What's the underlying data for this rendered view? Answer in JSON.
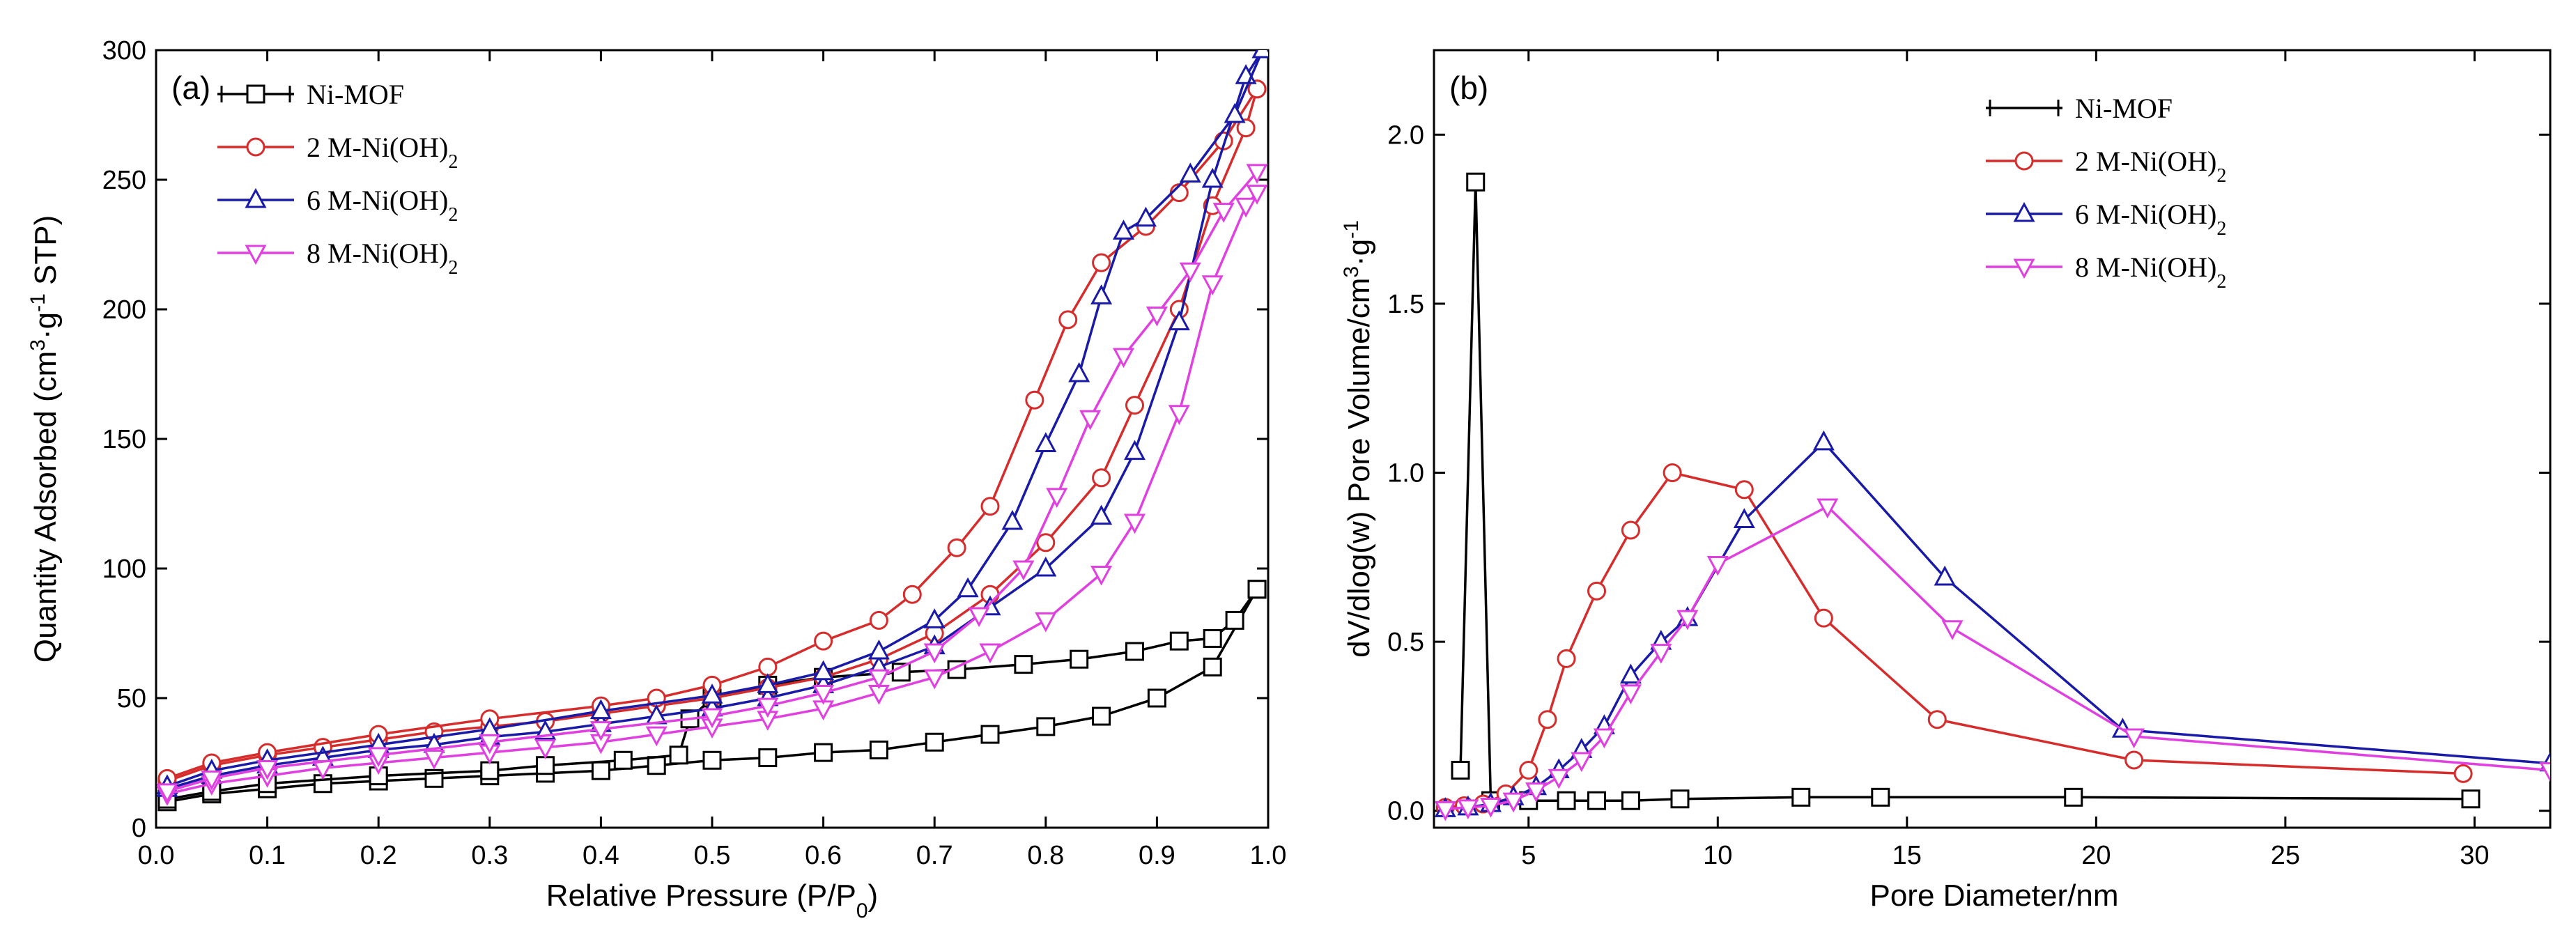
{
  "figure_name": "BET isotherms and pore size distribution of Ni-MOF and M-Ni(OH)2 samples",
  "colors": {
    "ni_mof": "#000000",
    "m2": "#d62c2c",
    "m6": "#1a1aa8",
    "m8": "#e040e0",
    "axis": "#000000"
  },
  "chart_data": [
    {
      "type": "line",
      "panel_label": "(a)",
      "xlabel_main": "Relative Pressure (P/P",
      "xlabel_sub": "0",
      "xlabel_close": ")",
      "ylabel_main": "Quantity Adsorbed (cm",
      "ylabel_sup1": "3",
      "ylabel_mid": "·g",
      "ylabel_sup2": "-1",
      "ylabel_end": " STP)",
      "xlim": [
        0.0,
        1.0
      ],
      "ylim": [
        0,
        300
      ],
      "xticks": [
        0.0,
        0.1,
        0.2,
        0.3,
        0.4,
        0.5,
        0.6,
        0.7,
        0.8,
        0.9,
        1.0
      ],
      "xtick_labels": [
        "0.0",
        "0.1",
        "0.2",
        "0.3",
        "0.4",
        "0.5",
        "0.6",
        "0.7",
        "0.8",
        "0.9",
        "1.0"
      ],
      "yticks": [
        0,
        50,
        100,
        150,
        200,
        250,
        300
      ],
      "ytick_labels": [
        "0",
        "50",
        "100",
        "150",
        "200",
        "250",
        "300"
      ],
      "legend_position": "top-left",
      "series": [
        {
          "key": "ni_mof",
          "name": "Ni-MOF",
          "name_sub": "",
          "marker": "square",
          "color": "#000000",
          "adsorption": [
            [
              0.01,
              10
            ],
            [
              0.05,
              13
            ],
            [
              0.1,
              15
            ],
            [
              0.15,
              17
            ],
            [
              0.2,
              18
            ],
            [
              0.25,
              19
            ],
            [
              0.3,
              20
            ],
            [
              0.35,
              21
            ],
            [
              0.4,
              22
            ],
            [
              0.45,
              24
            ],
            [
              0.5,
              26
            ],
            [
              0.55,
              27
            ],
            [
              0.6,
              29
            ],
            [
              0.65,
              30
            ],
            [
              0.7,
              33
            ],
            [
              0.75,
              36
            ],
            [
              0.8,
              39
            ],
            [
              0.85,
              43
            ],
            [
              0.9,
              50
            ],
            [
              0.95,
              62
            ],
            [
              0.99,
              92
            ]
          ],
          "desorption": [
            [
              0.99,
              92
            ],
            [
              0.97,
              80
            ],
            [
              0.95,
              73
            ],
            [
              0.92,
              72
            ],
            [
              0.88,
              68
            ],
            [
              0.83,
              65
            ],
            [
              0.78,
              63
            ],
            [
              0.72,
              61
            ],
            [
              0.67,
              60
            ],
            [
              0.6,
              58
            ],
            [
              0.55,
              55
            ],
            [
              0.5,
              50
            ],
            [
              0.48,
              42
            ],
            [
              0.47,
              28
            ],
            [
              0.42,
              26
            ],
            [
              0.35,
              24
            ],
            [
              0.3,
              22
            ],
            [
              0.2,
              20
            ],
            [
              0.1,
              17
            ],
            [
              0.05,
              14
            ],
            [
              0.01,
              11
            ]
          ]
        },
        {
          "key": "m2",
          "name": "2 M-Ni(OH)",
          "name_sub": "2",
          "marker": "circle",
          "color": "#d62c2c",
          "adsorption": [
            [
              0.01,
              18
            ],
            [
              0.05,
              24
            ],
            [
              0.1,
              28
            ],
            [
              0.15,
              31
            ],
            [
              0.2,
              34
            ],
            [
              0.25,
              37
            ],
            [
              0.3,
              39
            ],
            [
              0.35,
              41
            ],
            [
              0.4,
              44
            ],
            [
              0.45,
              47
            ],
            [
              0.5,
              50
            ],
            [
              0.55,
              54
            ],
            [
              0.6,
              58
            ],
            [
              0.65,
              65
            ],
            [
              0.7,
              75
            ],
            [
              0.75,
              90
            ],
            [
              0.8,
              110
            ],
            [
              0.85,
              135
            ],
            [
              0.88,
              163
            ],
            [
              0.92,
              200
            ],
            [
              0.95,
              240
            ],
            [
              0.98,
              270
            ],
            [
              0.99,
              285
            ]
          ],
          "desorption": [
            [
              0.99,
              285
            ],
            [
              0.96,
              265
            ],
            [
              0.92,
              245
            ],
            [
              0.89,
              232
            ],
            [
              0.85,
              218
            ],
            [
              0.82,
              196
            ],
            [
              0.79,
              165
            ],
            [
              0.75,
              124
            ],
            [
              0.72,
              108
            ],
            [
              0.68,
              90
            ],
            [
              0.65,
              80
            ],
            [
              0.6,
              72
            ],
            [
              0.55,
              62
            ],
            [
              0.5,
              55
            ],
            [
              0.45,
              50
            ],
            [
              0.4,
              47
            ],
            [
              0.3,
              42
            ],
            [
              0.2,
              36
            ],
            [
              0.1,
              29
            ],
            [
              0.05,
              25
            ],
            [
              0.01,
              19
            ]
          ]
        },
        {
          "key": "m6",
          "name": "6 M-Ni(OH)",
          "name_sub": "2",
          "marker": "triangle-up",
          "color": "#1a1aa8",
          "adsorption": [
            [
              0.01,
              15
            ],
            [
              0.05,
              20
            ],
            [
              0.1,
              24
            ],
            [
              0.15,
              27
            ],
            [
              0.2,
              30
            ],
            [
              0.25,
              32
            ],
            [
              0.3,
              35
            ],
            [
              0.35,
              37
            ],
            [
              0.4,
              40
            ],
            [
              0.45,
              43
            ],
            [
              0.5,
              46
            ],
            [
              0.55,
              50
            ],
            [
              0.6,
              55
            ],
            [
              0.65,
              62
            ],
            [
              0.7,
              70
            ],
            [
              0.75,
              85
            ],
            [
              0.8,
              100
            ],
            [
              0.85,
              120
            ],
            [
              0.88,
              145
            ],
            [
              0.92,
              195
            ],
            [
              0.95,
              250
            ],
            [
              0.98,
              290
            ],
            [
              0.995,
              300
            ]
          ],
          "desorption": [
            [
              0.995,
              300
            ],
            [
              0.97,
              275
            ],
            [
              0.93,
              252
            ],
            [
              0.89,
              235
            ],
            [
              0.87,
              230
            ],
            [
              0.85,
              205
            ],
            [
              0.83,
              175
            ],
            [
              0.8,
              148
            ],
            [
              0.77,
              118
            ],
            [
              0.73,
              92
            ],
            [
              0.7,
              80
            ],
            [
              0.65,
              68
            ],
            [
              0.6,
              60
            ],
            [
              0.55,
              55
            ],
            [
              0.5,
              51
            ],
            [
              0.4,
              45
            ],
            [
              0.3,
              38
            ],
            [
              0.2,
              32
            ],
            [
              0.1,
              26
            ],
            [
              0.05,
              22
            ],
            [
              0.01,
              16
            ]
          ]
        },
        {
          "key": "m8",
          "name": "8 M-Ni(OH)",
          "name_sub": "2",
          "marker": "triangle-down",
          "color": "#e040e0",
          "adsorption": [
            [
              0.01,
              13
            ],
            [
              0.05,
              17
            ],
            [
              0.1,
              20
            ],
            [
              0.15,
              23
            ],
            [
              0.2,
              25
            ],
            [
              0.25,
              27
            ],
            [
              0.3,
              29
            ],
            [
              0.35,
              31
            ],
            [
              0.4,
              33
            ],
            [
              0.45,
              36
            ],
            [
              0.5,
              39
            ],
            [
              0.55,
              42
            ],
            [
              0.6,
              46
            ],
            [
              0.65,
              52
            ],
            [
              0.7,
              58
            ],
            [
              0.75,
              68
            ],
            [
              0.8,
              80
            ],
            [
              0.85,
              98
            ],
            [
              0.88,
              118
            ],
            [
              0.92,
              160
            ],
            [
              0.95,
              210
            ],
            [
              0.98,
              240
            ],
            [
              0.99,
              245
            ]
          ],
          "desorption": [
            [
              0.99,
              253
            ],
            [
              0.96,
              238
            ],
            [
              0.93,
              215
            ],
            [
              0.9,
              198
            ],
            [
              0.87,
              182
            ],
            [
              0.84,
              158
            ],
            [
              0.81,
              128
            ],
            [
              0.78,
              100
            ],
            [
              0.74,
              82
            ],
            [
              0.7,
              68
            ],
            [
              0.65,
              58
            ],
            [
              0.6,
              52
            ],
            [
              0.55,
              47
            ],
            [
              0.5,
              43
            ],
            [
              0.4,
              38
            ],
            [
              0.3,
              33
            ],
            [
              0.2,
              28
            ],
            [
              0.1,
              23
            ],
            [
              0.05,
              19
            ],
            [
              0.01,
              14
            ]
          ]
        }
      ]
    },
    {
      "type": "line",
      "panel_label": "(b)",
      "xlabel": "Pore Diameter/nm",
      "ylabel_main": "dV/dlog(w) Pore Volume/cm",
      "ylabel_sup1": "3",
      "ylabel_mid": "·g",
      "ylabel_sup2": "-1",
      "ylabel_end": "",
      "xlim": [
        2.5,
        32
      ],
      "ylim": [
        -0.05,
        2.25
      ],
      "xticks": [
        5,
        10,
        15,
        20,
        25,
        30
      ],
      "xtick_labels": [
        "5",
        "10",
        "15",
        "20",
        "25",
        "30"
      ],
      "yticks": [
        0.0,
        0.5,
        1.0,
        1.5,
        2.0
      ],
      "ytick_labels": [
        "0.0",
        "0.5",
        "1.0",
        "1.5",
        "2.0"
      ],
      "legend_position": "top-left",
      "series": [
        {
          "key": "ni_mof",
          "name": "Ni-MOF",
          "name_sub": "",
          "marker": "square",
          "color": "#000000",
          "points": [
            [
              3.2,
              0.12
            ],
            [
              3.6,
              1.86
            ],
            [
              4.0,
              0.03
            ],
            [
              5.0,
              0.03
            ],
            [
              6.0,
              0.03
            ],
            [
              6.8,
              0.03
            ],
            [
              7.7,
              0.03
            ],
            [
              9.0,
              0.035
            ],
            [
              12.2,
              0.04
            ],
            [
              14.3,
              0.04
            ],
            [
              19.4,
              0.04
            ],
            [
              29.9,
              0.035
            ]
          ]
        },
        {
          "key": "m2",
          "name": "2 M-Ni(OH)",
          "name_sub": "2",
          "marker": "circle",
          "color": "#d62c2c",
          "points": [
            [
              2.8,
              0.01
            ],
            [
              3.3,
              0.015
            ],
            [
              3.8,
              0.02
            ],
            [
              4.4,
              0.05
            ],
            [
              5.0,
              0.12
            ],
            [
              5.5,
              0.27
            ],
            [
              6.0,
              0.45
            ],
            [
              6.8,
              0.65
            ],
            [
              7.7,
              0.83
            ],
            [
              8.8,
              1.0
            ],
            [
              10.7,
              0.95
            ],
            [
              12.8,
              0.57
            ],
            [
              15.8,
              0.27
            ],
            [
              21.0,
              0.15
            ],
            [
              29.7,
              0.11
            ]
          ]
        },
        {
          "key": "m6",
          "name": "6 M-Ni(OH)",
          "name_sub": "2",
          "marker": "triangle-up",
          "color": "#1a1aa8",
          "points": [
            [
              2.8,
              0.005
            ],
            [
              3.4,
              0.01
            ],
            [
              4.0,
              0.02
            ],
            [
              4.6,
              0.04
            ],
            [
              5.2,
              0.07
            ],
            [
              5.8,
              0.12
            ],
            [
              6.4,
              0.18
            ],
            [
              7.0,
              0.25
            ],
            [
              7.7,
              0.4
            ],
            [
              8.5,
              0.5
            ],
            [
              9.2,
              0.57
            ],
            [
              10.7,
              0.86
            ],
            [
              12.8,
              1.09
            ],
            [
              16.0,
              0.69
            ],
            [
              20.7,
              0.24
            ],
            [
              32,
              0.14
            ]
          ]
        },
        {
          "key": "m8",
          "name": "8 M-Ni(OH)",
          "name_sub": "2",
          "marker": "triangle-down",
          "color": "#e040e0",
          "points": [
            [
              2.8,
              0.005
            ],
            [
              3.4,
              0.01
            ],
            [
              4.0,
              0.015
            ],
            [
              4.6,
              0.03
            ],
            [
              5.2,
              0.06
            ],
            [
              5.8,
              0.1
            ],
            [
              6.4,
              0.15
            ],
            [
              7.0,
              0.22
            ],
            [
              7.7,
              0.35
            ],
            [
              8.5,
              0.47
            ],
            [
              9.2,
              0.57
            ],
            [
              10.0,
              0.73
            ],
            [
              12.9,
              0.9
            ],
            [
              16.2,
              0.54
            ],
            [
              21.0,
              0.22
            ],
            [
              32,
              0.12
            ]
          ]
        }
      ]
    }
  ]
}
